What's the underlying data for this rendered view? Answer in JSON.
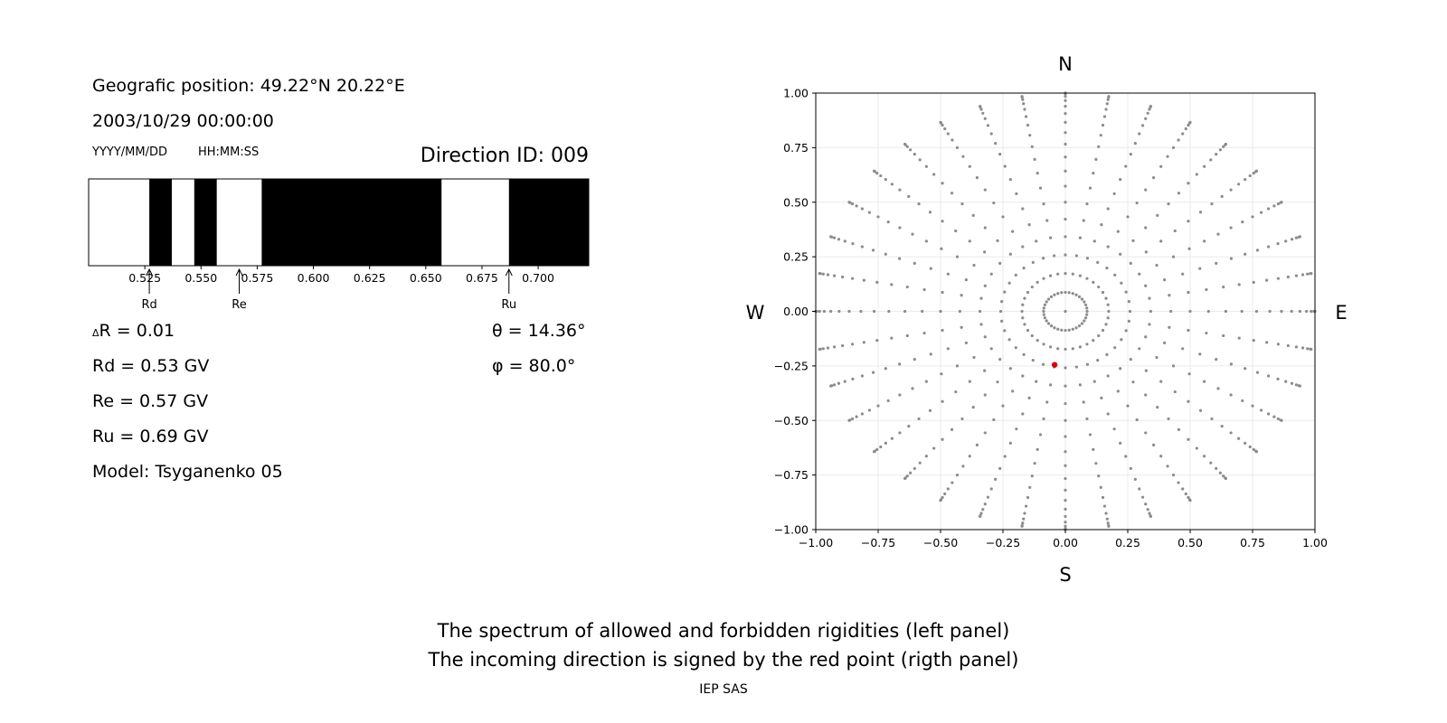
{
  "header": {
    "position": "Geografic position: 49.22°N 20.22°E",
    "datetime": "2003/10/29 00:00:00",
    "date_format": "YYYY/MM/DD",
    "time_format": "HH:MM:SS",
    "direction_id": "Direction ID: 009"
  },
  "stats": {
    "dR": "R = 0.01",
    "dR_symbol": "Δ",
    "Rd": "Rd = 0.53 GV",
    "Re": "Re = 0.57 GV",
    "Ru": "Ru = 0.69 GV",
    "model": "Model: Tsyganenko 05",
    "theta": "θ = 14.36°",
    "phi": "φ = 80.0°"
  },
  "compass": {
    "N": "N",
    "S": "S",
    "W": "W",
    "E": "E"
  },
  "footer": {
    "line1": "The spectrum of allowed and forbidden rigidities (left panel)",
    "line2": "The incoming direction is signed by the red point (rigth panel)",
    "credit": "IEP SAS"
  },
  "colors": {
    "forbidden": "#000000",
    "allowed": "#ffffff",
    "grid_points": "#8c8c8c",
    "direction": "#e00000"
  },
  "chart_data": [
    {
      "type": "bar",
      "title": "",
      "xlabel": "",
      "ylabel": "",
      "xlim": [
        0.5,
        0.7225
      ],
      "xticks": [
        0.525,
        0.55,
        0.575,
        0.6,
        0.625,
        0.65,
        0.675,
        0.7
      ],
      "xtick_labels": [
        "0.525",
        "0.550",
        "0.575",
        "0.600",
        "0.625",
        "0.650",
        "0.675",
        "0.700"
      ],
      "forbidden_intervals": [
        [
          0.527,
          0.537
        ],
        [
          0.547,
          0.557
        ],
        [
          0.577,
          0.657
        ],
        [
          0.687,
          0.7225
        ]
      ],
      "markers": [
        {
          "label": "Rd",
          "value": 0.527
        },
        {
          "label": "Re",
          "value": 0.567
        },
        {
          "label": "Ru",
          "value": 0.687
        }
      ]
    },
    {
      "type": "scatter",
      "title": "",
      "xlabel": "",
      "ylabel": "",
      "xlim": [
        -1.0,
        1.0
      ],
      "ylim": [
        -1.0,
        1.0
      ],
      "xticks": [
        -1.0,
        -0.75,
        -0.5,
        -0.25,
        0.0,
        0.25,
        0.5,
        0.75,
        1.0
      ],
      "yticks": [
        -1.0,
        -0.75,
        -0.5,
        -0.25,
        0.0,
        0.25,
        0.5,
        0.75,
        1.0
      ],
      "xtick_labels": [
        "−1.00",
        "−0.75",
        "−0.50",
        "−0.25",
        "0.00",
        "0.25",
        "0.50",
        "0.75",
        "1.00"
      ],
      "ytick_labels": [
        "−1.00",
        "−0.75",
        "−0.50",
        "−0.25",
        "0.00",
        "0.25",
        "0.50",
        "0.75",
        "1.00"
      ],
      "grid": true,
      "grid_series": {
        "zenith_angles_deg": [
          5,
          10,
          15,
          20,
          25,
          30,
          35,
          40,
          45,
          50,
          55,
          60,
          65,
          70,
          75,
          80,
          85,
          90
        ],
        "azimuth_step_deg": 10,
        "radius": "sin(zenith_angle)"
      },
      "highlight": {
        "x": -0.043,
        "y": -0.245
      }
    }
  ]
}
